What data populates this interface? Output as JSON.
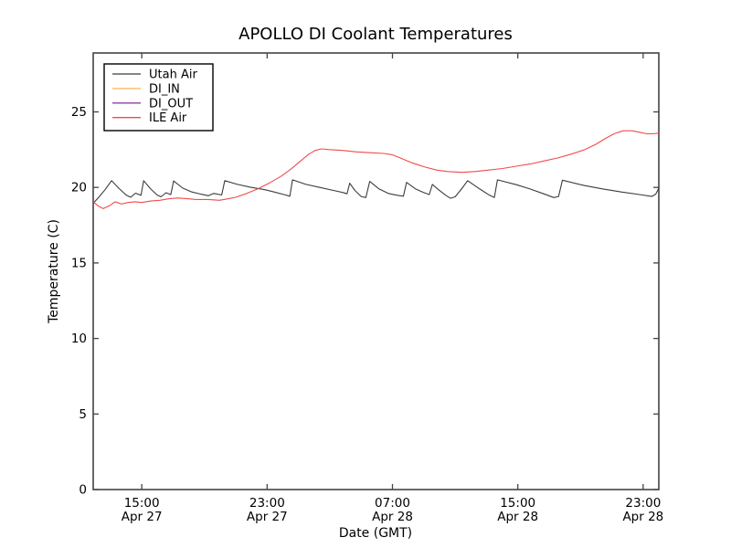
{
  "figure": {
    "background_color": "#ffffff",
    "spine_color": "#444444",
    "tick_color": "#444444"
  },
  "chart_data": {
    "type": "line",
    "title": "APOLLO DI Coolant Temperatures",
    "xlabel": "Date (GMT)",
    "ylabel": "Temperature (C)",
    "grid": false,
    "legend_position": "upper-left",
    "x_unit": "hours since Apr 27 00:00 GMT",
    "xlim": [
      11.9,
      48.0
    ],
    "ylim": [
      0,
      28.9
    ],
    "y_ticks": [
      0,
      5,
      10,
      15,
      20,
      25
    ],
    "x_ticks": [
      {
        "hour": 15,
        "time": "15:00",
        "date": "Apr 27"
      },
      {
        "hour": 23,
        "time": "23:00",
        "date": "Apr 27"
      },
      {
        "hour": 31,
        "time": "07:00",
        "date": "Apr 28"
      },
      {
        "hour": 39,
        "time": "15:00",
        "date": "Apr 28"
      },
      {
        "hour": 47,
        "time": "23:00",
        "date": "Apr 28"
      }
    ],
    "series": [
      {
        "name": "Utah Air",
        "color": "#3c3c3c",
        "visible": true,
        "points": [
          [
            11.9,
            18.95
          ],
          [
            12.25,
            19.35
          ],
          [
            12.66,
            19.85
          ],
          [
            13.07,
            20.45
          ],
          [
            13.53,
            19.95
          ],
          [
            14.0,
            19.5
          ],
          [
            14.29,
            19.35
          ],
          [
            14.6,
            19.62
          ],
          [
            14.95,
            19.48
          ],
          [
            15.12,
            20.45
          ],
          [
            15.57,
            19.9
          ],
          [
            15.98,
            19.5
          ],
          [
            16.22,
            19.38
          ],
          [
            16.55,
            19.65
          ],
          [
            16.85,
            19.52
          ],
          [
            17.03,
            20.43
          ],
          [
            17.62,
            19.95
          ],
          [
            18.2,
            19.7
          ],
          [
            18.78,
            19.55
          ],
          [
            19.25,
            19.45
          ],
          [
            19.6,
            19.6
          ],
          [
            20.1,
            19.5
          ],
          [
            20.3,
            20.45
          ],
          [
            21.11,
            20.2
          ],
          [
            21.99,
            20.0
          ],
          [
            22.86,
            19.85
          ],
          [
            23.45,
            19.7
          ],
          [
            24.1,
            19.52
          ],
          [
            24.45,
            19.42
          ],
          [
            24.62,
            20.5
          ],
          [
            25.48,
            20.2
          ],
          [
            26.36,
            20.0
          ],
          [
            27.23,
            19.8
          ],
          [
            27.85,
            19.66
          ],
          [
            28.1,
            19.58
          ],
          [
            28.27,
            20.28
          ],
          [
            28.6,
            19.8
          ],
          [
            29.0,
            19.4
          ],
          [
            29.3,
            19.33
          ],
          [
            29.55,
            20.4
          ],
          [
            30.15,
            19.9
          ],
          [
            30.74,
            19.6
          ],
          [
            31.3,
            19.48
          ],
          [
            31.7,
            19.42
          ],
          [
            31.9,
            20.33
          ],
          [
            32.48,
            19.9
          ],
          [
            32.95,
            19.68
          ],
          [
            33.35,
            19.53
          ],
          [
            33.55,
            20.2
          ],
          [
            33.94,
            19.85
          ],
          [
            34.4,
            19.48
          ],
          [
            34.7,
            19.28
          ],
          [
            35.0,
            19.38
          ],
          [
            35.45,
            19.95
          ],
          [
            35.8,
            20.45
          ],
          [
            36.57,
            19.9
          ],
          [
            37.2,
            19.48
          ],
          [
            37.5,
            19.33
          ],
          [
            37.7,
            20.5
          ],
          [
            38.9,
            20.18
          ],
          [
            39.78,
            19.9
          ],
          [
            40.65,
            19.58
          ],
          [
            41.3,
            19.33
          ],
          [
            41.6,
            19.4
          ],
          [
            41.85,
            20.48
          ],
          [
            43.27,
            20.12
          ],
          [
            44.44,
            19.9
          ],
          [
            45.61,
            19.7
          ],
          [
            46.77,
            19.53
          ],
          [
            47.55,
            19.4
          ],
          [
            47.8,
            19.55
          ],
          [
            48.0,
            19.95
          ]
        ]
      },
      {
        "name": "DI_IN",
        "color": "#ffb052",
        "visible": false,
        "points": []
      },
      {
        "name": "DI_OUT",
        "color": "#8d3f9d",
        "visible": false,
        "points": []
      },
      {
        "name": "ILE Air",
        "color": "#f04b4b",
        "visible": true,
        "points": [
          [
            11.9,
            19.05
          ],
          [
            12.25,
            18.75
          ],
          [
            12.54,
            18.6
          ],
          [
            12.95,
            18.8
          ],
          [
            13.3,
            19.05
          ],
          [
            13.71,
            18.9
          ],
          [
            14.12,
            19.0
          ],
          [
            14.58,
            19.05
          ],
          [
            14.99,
            19.0
          ],
          [
            15.57,
            19.1
          ],
          [
            16.16,
            19.15
          ],
          [
            16.74,
            19.25
          ],
          [
            17.32,
            19.3
          ],
          [
            17.91,
            19.25
          ],
          [
            18.49,
            19.2
          ],
          [
            19.25,
            19.2
          ],
          [
            19.95,
            19.15
          ],
          [
            20.53,
            19.25
          ],
          [
            21.0,
            19.35
          ],
          [
            21.7,
            19.6
          ],
          [
            22.4,
            19.9
          ],
          [
            23.16,
            20.3
          ],
          [
            23.91,
            20.75
          ],
          [
            24.5,
            21.2
          ],
          [
            25.08,
            21.7
          ],
          [
            25.66,
            22.2
          ],
          [
            26.07,
            22.45
          ],
          [
            26.48,
            22.55
          ],
          [
            27.06,
            22.5
          ],
          [
            27.82,
            22.45
          ],
          [
            28.69,
            22.35
          ],
          [
            29.57,
            22.3
          ],
          [
            30.44,
            22.25
          ],
          [
            31.02,
            22.15
          ],
          [
            31.61,
            21.9
          ],
          [
            32.31,
            21.6
          ],
          [
            33.07,
            21.35
          ],
          [
            33.82,
            21.15
          ],
          [
            34.52,
            21.05
          ],
          [
            35.4,
            21.0
          ],
          [
            36.27,
            21.05
          ],
          [
            37.15,
            21.15
          ],
          [
            38.02,
            21.25
          ],
          [
            38.9,
            21.4
          ],
          [
            39.78,
            21.55
          ],
          [
            40.65,
            21.75
          ],
          [
            41.53,
            21.95
          ],
          [
            42.4,
            22.2
          ],
          [
            43.27,
            22.5
          ],
          [
            43.97,
            22.85
          ],
          [
            44.61,
            23.25
          ],
          [
            45.14,
            23.55
          ],
          [
            45.72,
            23.75
          ],
          [
            46.31,
            23.75
          ],
          [
            46.77,
            23.65
          ],
          [
            47.24,
            23.55
          ],
          [
            47.65,
            23.55
          ],
          [
            48.0,
            23.6
          ]
        ]
      }
    ]
  }
}
